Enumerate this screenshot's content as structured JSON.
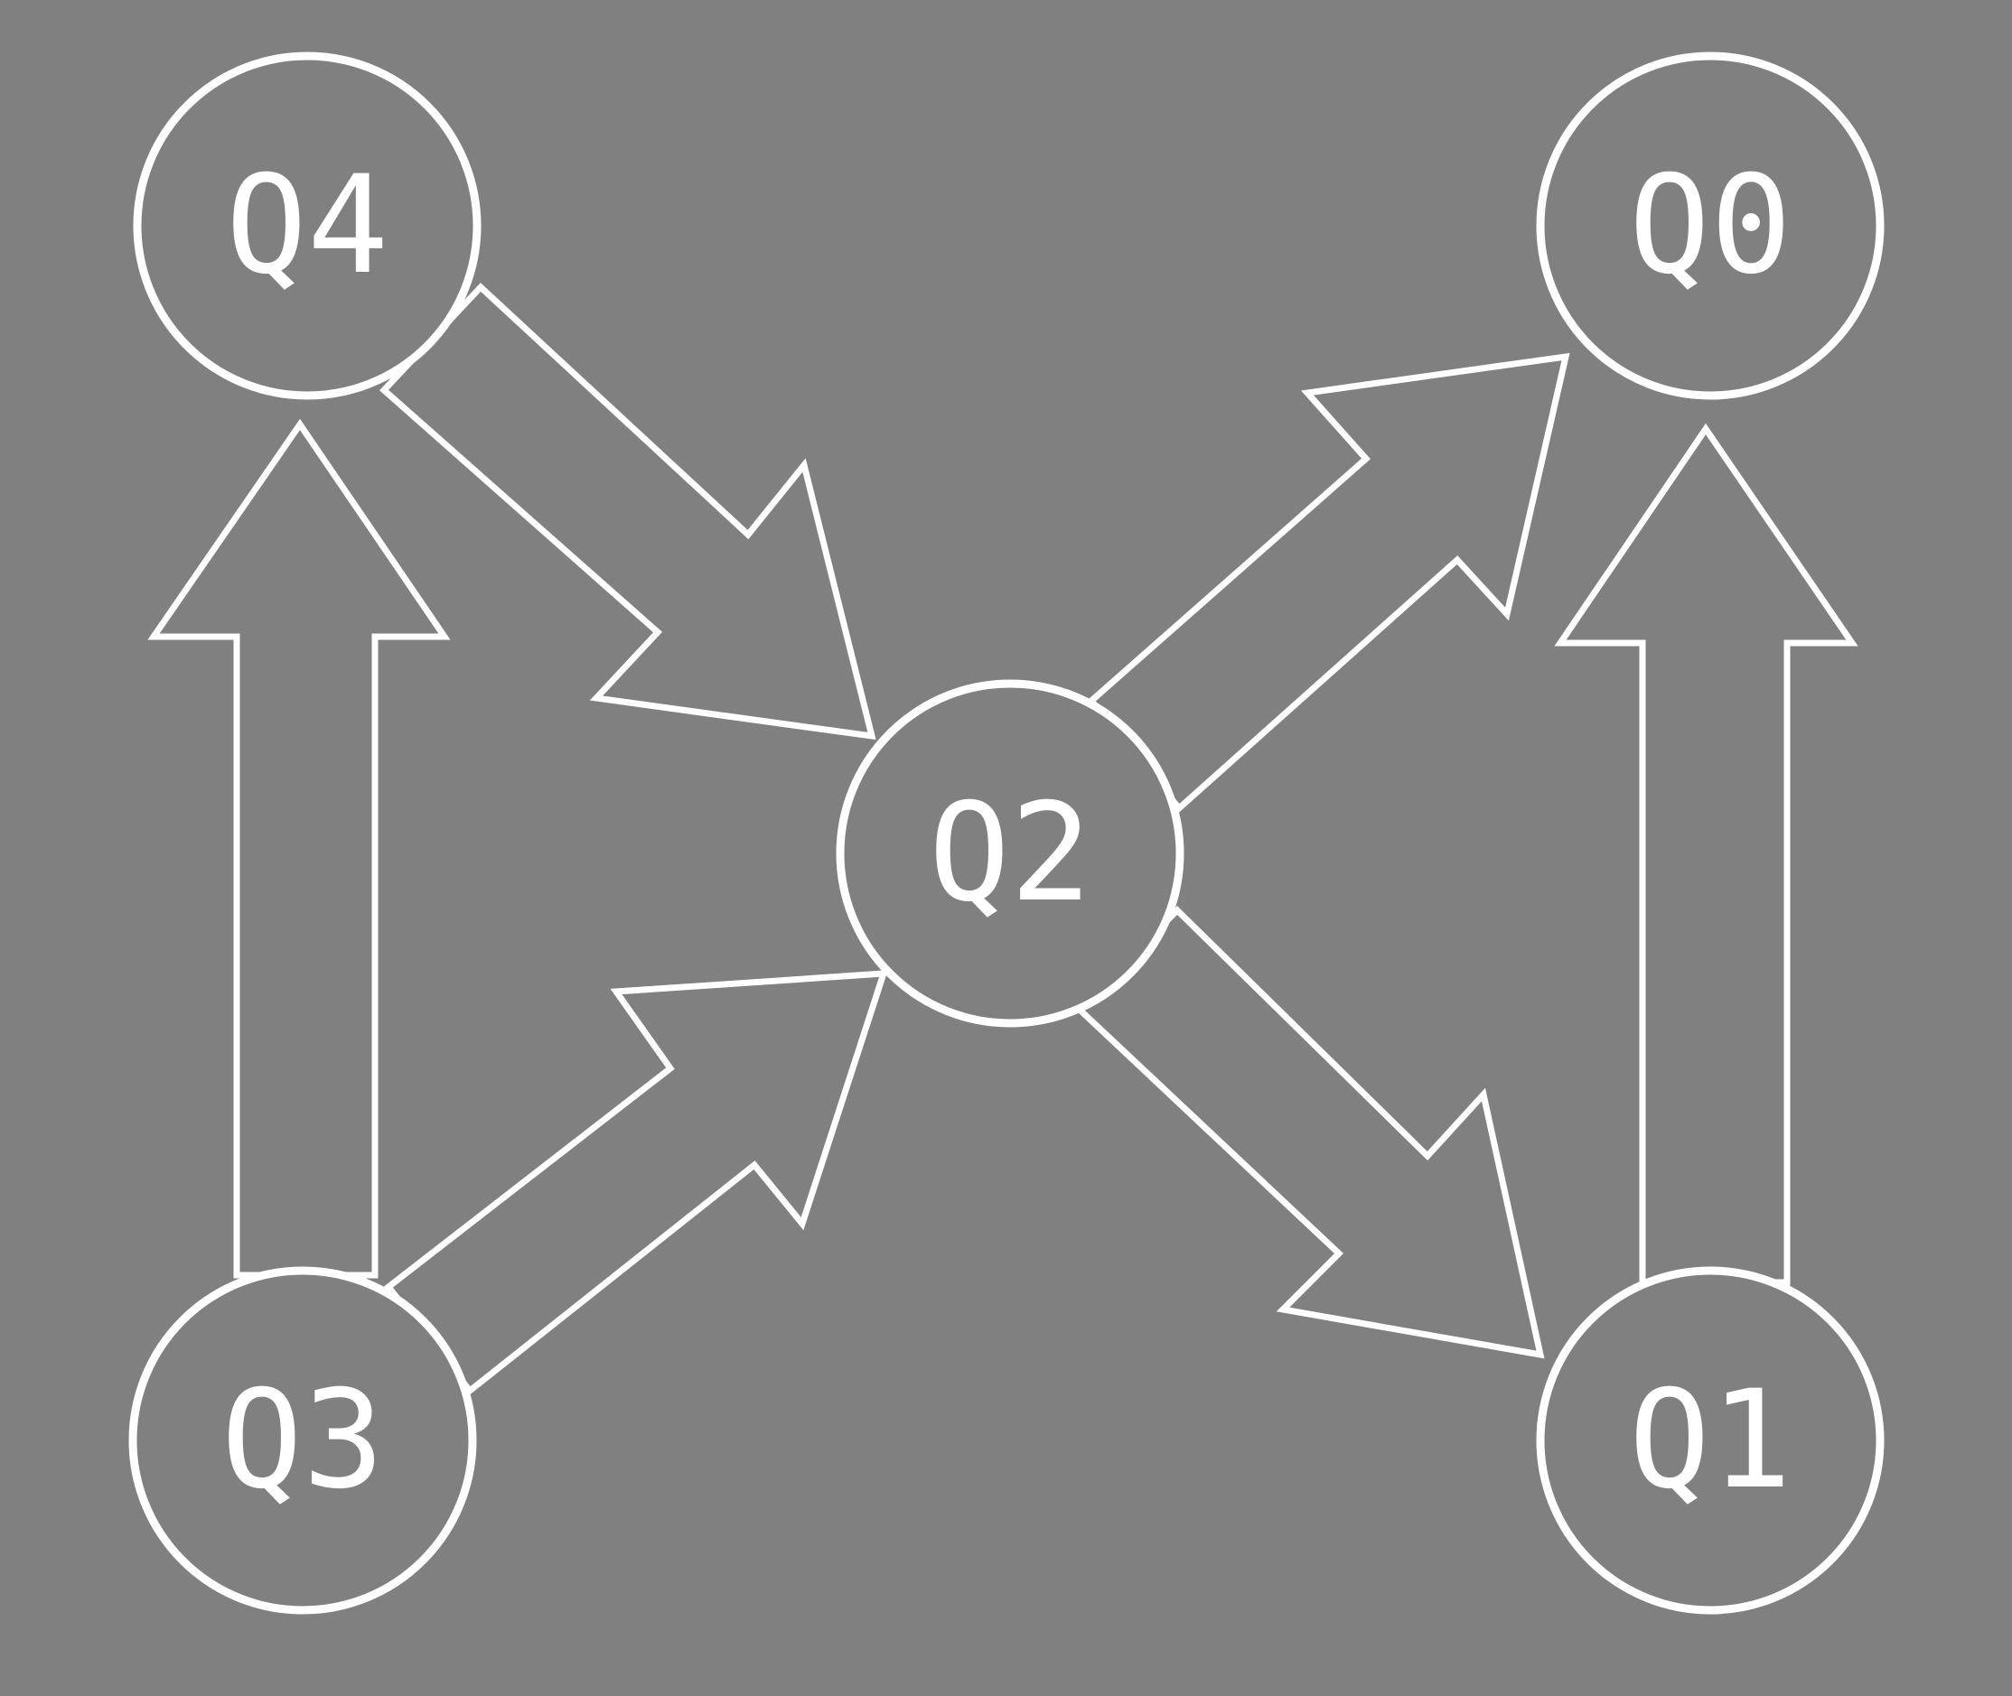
{
  "diagram": {
    "background_color": "#808080",
    "stroke_color": "#ffffff",
    "nodes": [
      {
        "id": "q0",
        "label": "Q0"
      },
      {
        "id": "q1",
        "label": "Q1"
      },
      {
        "id": "q2",
        "label": "Q2"
      },
      {
        "id": "q3",
        "label": "Q3"
      },
      {
        "id": "q4",
        "label": "Q4"
      }
    ],
    "edges": [
      {
        "from": "Q3",
        "to": "Q4"
      },
      {
        "from": "Q4",
        "to": "Q2"
      },
      {
        "from": "Q3",
        "to": "Q2"
      },
      {
        "from": "Q2",
        "to": "Q0"
      },
      {
        "from": "Q2",
        "to": "Q1"
      },
      {
        "from": "Q1",
        "to": "Q0"
      }
    ]
  }
}
